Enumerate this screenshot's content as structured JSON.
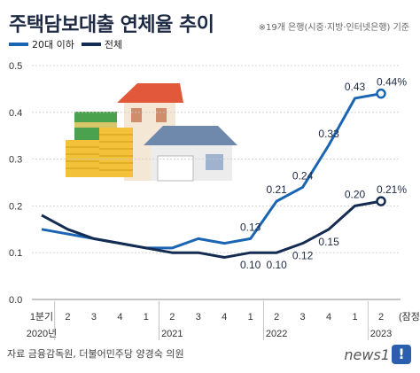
{
  "header": {
    "title": "주택담보대출 연체율 추이",
    "subtitle": "※19개 은행(시중·지방·인터넷은행) 기준"
  },
  "legend": {
    "items": [
      {
        "label": "20대 이하",
        "color": "#1a64b4"
      },
      {
        "label": "전체",
        "color": "#142c52"
      }
    ]
  },
  "footer": {
    "source": "자료 금융감독원, 더불어민주당 양경숙 의원",
    "brand": "news1"
  },
  "chart_data": {
    "type": "line",
    "title": "주택담보대출 연체율 추이",
    "ylim": [
      0,
      0.5
    ],
    "yticks": [
      "0.5",
      "0.4",
      "0.3",
      "0.2",
      "0.1",
      "0.0"
    ],
    "ytick_values": [
      0.5,
      0.4,
      0.3,
      0.2,
      0.1,
      0.0
    ],
    "x": [
      "1분기",
      "2",
      "3",
      "4",
      "1",
      "2",
      "3",
      "4",
      "1",
      "2",
      "3",
      "4",
      "1",
      "2 (잠정)"
    ],
    "x_tick_labels": [
      "1분기",
      "2",
      "3",
      "4",
      "1",
      "2",
      "3",
      "4",
      "1",
      "2",
      "3",
      "4",
      "1",
      "2"
    ],
    "year_labels": [
      {
        "index": 0,
        "label": "2020년"
      },
      {
        "index": 5,
        "label": "2021"
      },
      {
        "index": 9,
        "label": "2022"
      },
      {
        "index": 13,
        "label": "2023"
      }
    ],
    "provisional_label": "(잠정)",
    "series": [
      {
        "name": "20대 이하",
        "color": "#1a64b4",
        "values": [
          0.15,
          0.14,
          0.13,
          0.12,
          0.11,
          0.11,
          0.13,
          0.12,
          0.13,
          0.21,
          0.24,
          0.33,
          0.43,
          0.44
        ],
        "data_labels": [
          {
            "index": 8,
            "text": "0.13"
          },
          {
            "index": 9,
            "text": "0.21"
          },
          {
            "index": 10,
            "text": "0.24"
          },
          {
            "index": 11,
            "text": "0.33"
          },
          {
            "index": 12,
            "text": "0.43"
          },
          {
            "index": 13,
            "text": "0.44%"
          }
        ]
      },
      {
        "name": "전체",
        "color": "#142c52",
        "values": [
          0.18,
          0.15,
          0.13,
          0.12,
          0.11,
          0.1,
          0.1,
          0.09,
          0.1,
          0.1,
          0.12,
          0.15,
          0.2,
          0.21
        ],
        "data_labels": [
          {
            "index": 8,
            "text": "0.10"
          },
          {
            "index": 9,
            "text": "0.10"
          },
          {
            "index": 10,
            "text": "0.12"
          },
          {
            "index": 11,
            "text": "0.15"
          },
          {
            "index": 12,
            "text": "0.20"
          },
          {
            "index": 13,
            "text": "0.21%"
          }
        ]
      }
    ],
    "grid": true,
    "legend_position": "top-left"
  }
}
